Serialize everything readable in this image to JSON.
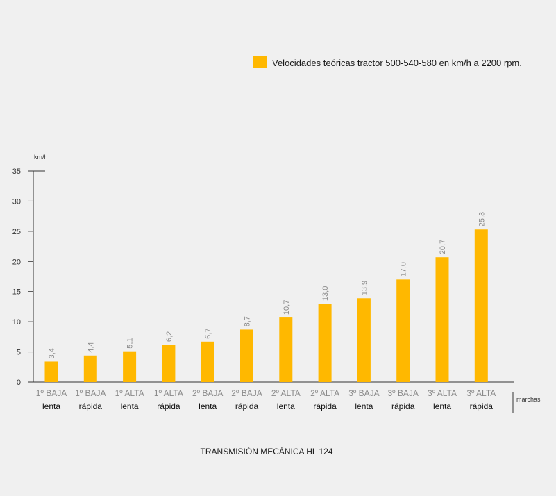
{
  "chart_data": {
    "type": "bar",
    "title": "TRANSMISIÓN MECÁNICA HL 124",
    "ylabel": "km/h",
    "xlabel": "marchas",
    "ylim": [
      0,
      35
    ],
    "yticks": [
      0,
      5,
      10,
      15,
      20,
      25,
      30,
      35
    ],
    "grid": false,
    "legend_position": "top-right",
    "bar_color": "#ffb800",
    "categories": [
      {
        "line1": "1º BAJA",
        "line2": "lenta"
      },
      {
        "line1": "1º BAJA",
        "line2": "rápida"
      },
      {
        "line1": "1º ALTA",
        "line2": "lenta"
      },
      {
        "line1": "1º ALTA",
        "line2": "rápida"
      },
      {
        "line1": "2º BAJA",
        "line2": "lenta"
      },
      {
        "line1": "2º BAJA",
        "line2": "rápida"
      },
      {
        "line1": "2º ALTA",
        "line2": "lenta"
      },
      {
        "line1": "2º ALTA",
        "line2": "rápida"
      },
      {
        "line1": "3º BAJA",
        "line2": "lenta"
      },
      {
        "line1": "3º BAJA",
        "line2": "rápida"
      },
      {
        "line1": "3º ALTA",
        "line2": "lenta"
      },
      {
        "line1": "3º ALTA",
        "line2": "rápida"
      }
    ],
    "series": [
      {
        "name": "Velocidades teóricas tractor 500-540-580 en km/h a 2200 rpm.",
        "values": [
          3.4,
          4.4,
          5.1,
          6.2,
          6.7,
          8.7,
          10.7,
          13.0,
          13.9,
          17.0,
          20.7,
          25.3
        ],
        "labels": [
          "3,4",
          "4,4",
          "5,1",
          "6,2",
          "6,7",
          "8,7",
          "10,7",
          "13,0",
          "13,9",
          "17,0",
          "20,7",
          "25,3"
        ]
      }
    ]
  }
}
